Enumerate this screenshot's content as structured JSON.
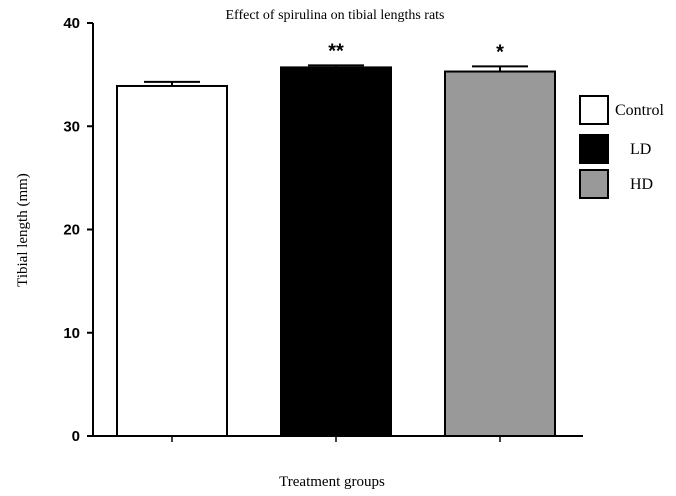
{
  "chart_data": {
    "type": "bar",
    "title": "Effect  of spirulina on tibial lengths rats",
    "xlabel": "Treatment  groups",
    "ylabel": "Tibial length (mm)",
    "ylim": [
      0,
      40
    ],
    "yticks": [
      0,
      10,
      20,
      30,
      40
    ],
    "grid": false,
    "legend_position": "right",
    "categories": [
      "Control",
      "LD",
      "HD"
    ],
    "values": [
      33.9,
      35.7,
      35.3
    ],
    "errors": [
      0.4,
      0.2,
      0.5
    ],
    "significance": [
      "",
      "**",
      "*"
    ],
    "colors": [
      "#ffffff",
      "#000000",
      "#999999"
    ],
    "legend": [
      {
        "label": "Control",
        "color": "#ffffff"
      },
      {
        "label": "LD",
        "color": "#000000"
      },
      {
        "label": "HD",
        "color": "#999999"
      }
    ]
  }
}
